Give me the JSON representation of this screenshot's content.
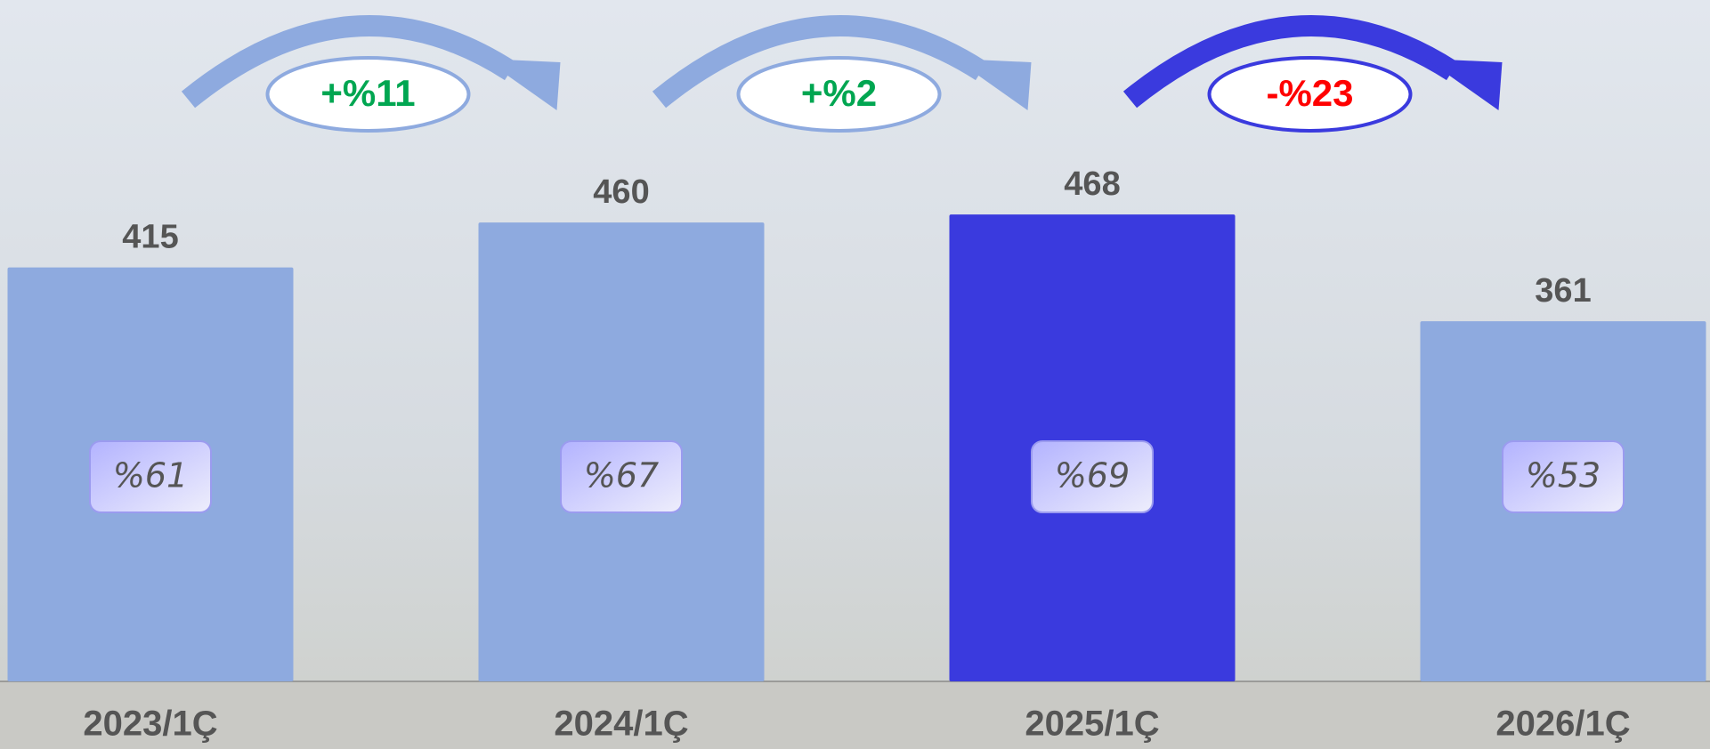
{
  "chart_data": {
    "type": "bar",
    "categories": [
      "2023/1Ç",
      "2024/1Ç",
      "2025/1Ç",
      "2026/1Ç"
    ],
    "values": [
      415,
      460,
      468,
      361
    ],
    "colors": [
      "#8eaadf",
      "#8eaadf",
      "#3a3ade",
      "#8eaadf"
    ],
    "inner_labels": [
      "%61",
      "%67",
      "%69",
      "%53"
    ],
    "changes": [
      {
        "label": "+%11",
        "color": "#00a651",
        "arrow_color": "#8eaadf"
      },
      {
        "label": "+%2",
        "color": "#00a651",
        "arrow_color": "#8eaadf"
      },
      {
        "label": "-%23",
        "color": "#ff0000",
        "arrow_color": "#3a3ade"
      }
    ],
    "ylim": [
      0,
      683
    ]
  }
}
